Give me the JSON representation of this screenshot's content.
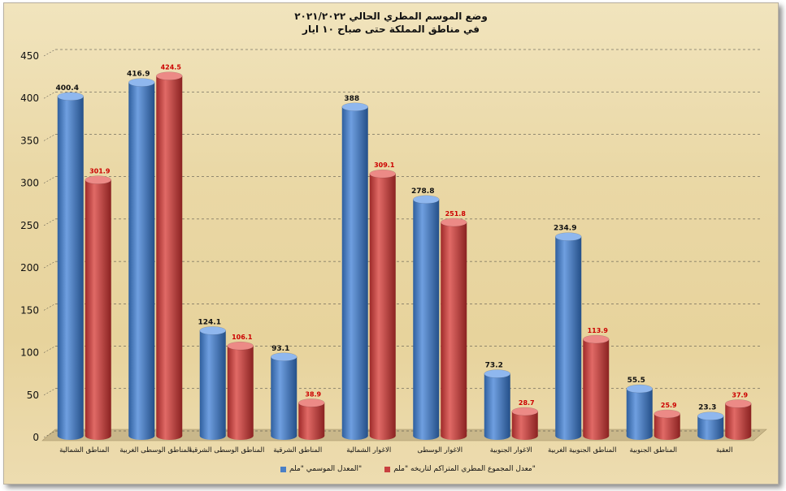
{
  "title_line1": "وضع الموسم المطري الحالي ٢٠٢١/٢٠٢٢",
  "title_line2": "في مناطق المملكة حتى صباح ١٠ ايار",
  "colors": {
    "series1": "#4a7fc6",
    "series2": "#c8403f",
    "label2": "#cc0000"
  },
  "chart_data": {
    "type": "bar",
    "title": "وضع الموسم المطري الحالي ٢٠٢١/٢٠٢٢ في مناطق المملكة حتى صباح ١٠ ايار",
    "categories": [
      "المناطق الشمالية",
      "المناطق الوسطى الغربية",
      "المناطق الوسطى الشرقية",
      "المناطق الشرقية",
      "الاغوار الشمالية",
      "الاغوار الوسطى",
      "الاغوار الجنوبية",
      "المناطق الجنوبية الغربية",
      "المناطق الجنوبية",
      "العقبة"
    ],
    "series": [
      {
        "name": "المعدل الموسمي \"ملم\"",
        "values": [
          400.4,
          416.9,
          124.1,
          93.1,
          388,
          278.8,
          73.2,
          234.9,
          55.5,
          23.3
        ]
      },
      {
        "name": "معدل المجموع المطري المتراكم لتاريخه \"ملم\"",
        "values": [
          301.9,
          424.5,
          106.1,
          38.9,
          309.1,
          251.8,
          28.7,
          113.9,
          25.9,
          37.9
        ]
      }
    ],
    "ylim": [
      0,
      450
    ],
    "yticks": [
      0,
      50,
      100,
      150,
      200,
      250,
      300,
      350,
      400,
      450
    ],
    "grid": true,
    "legend_position": "bottom"
  }
}
